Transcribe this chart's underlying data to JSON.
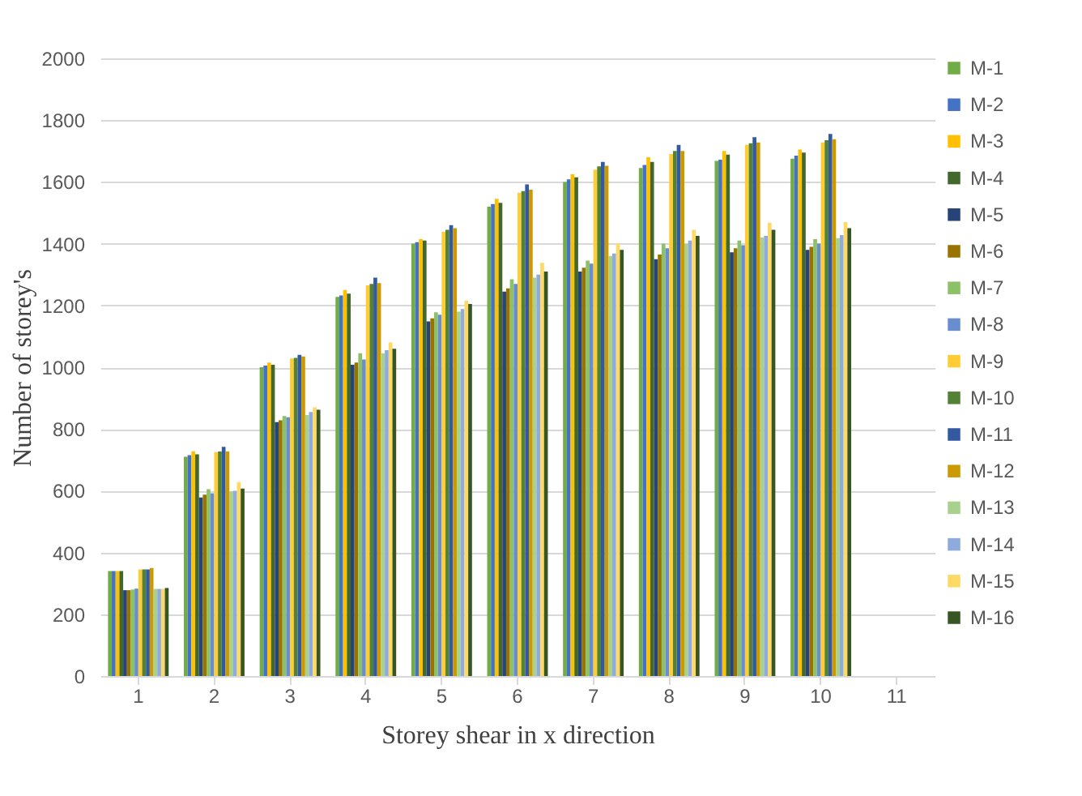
{
  "chart_data": {
    "type": "bar",
    "xlabel": "Storey shear in x direction",
    "ylabel": "Number of storey's",
    "categories": [
      "1",
      "2",
      "3",
      "4",
      "5",
      "6",
      "7",
      "8",
      "9",
      "10",
      "11"
    ],
    "ylim": [
      0,
      2000
    ],
    "yticks": [
      0,
      200,
      400,
      600,
      800,
      1000,
      1200,
      1400,
      1600,
      1800,
      2000
    ],
    "grid": "y",
    "legend": "right",
    "series": [
      {
        "name": "M-1",
        "color": "#70ad47",
        "values": [
          340,
          710,
          1000,
          1228,
          1400,
          1520,
          1600,
          1645,
          1668,
          1675,
          null
        ]
      },
      {
        "name": "M-2",
        "color": "#4472c4",
        "values": [
          340,
          715,
          1005,
          1232,
          1405,
          1528,
          1608,
          1655,
          1672,
          1685,
          null
        ]
      },
      {
        "name": "M-3",
        "color": "#ffc000",
        "values": [
          340,
          728,
          1015,
          1250,
          1415,
          1545,
          1625,
          1680,
          1700,
          1705,
          null
        ]
      },
      {
        "name": "M-4",
        "color": "#43682b",
        "values": [
          340,
          718,
          1008,
          1238,
          1410,
          1532,
          1615,
          1665,
          1688,
          1695,
          null
        ]
      },
      {
        "name": "M-5",
        "color": "#264478",
        "values": [
          278,
          578,
          822,
          1008,
          1148,
          1245,
          1310,
          1350,
          1372,
          1380,
          null
        ]
      },
      {
        "name": "M-6",
        "color": "#997300",
        "values": [
          278,
          587,
          828,
          1015,
          1158,
          1255,
          1322,
          1365,
          1385,
          1390,
          null
        ]
      },
      {
        "name": "M-7",
        "color": "#8cc168",
        "values": [
          280,
          605,
          842,
          1045,
          1178,
          1285,
          1345,
          1400,
          1410,
          1415,
          null
        ]
      },
      {
        "name": "M-8",
        "color": "#698ed0",
        "values": [
          283,
          592,
          838,
          1025,
          1170,
          1270,
          1335,
          1385,
          1395,
          1400,
          null
        ]
      },
      {
        "name": "M-9",
        "color": "#ffcd33",
        "values": [
          345,
          725,
          1028,
          1265,
          1438,
          1565,
          1640,
          1690,
          1720,
          1728,
          null
        ]
      },
      {
        "name": "M-10",
        "color": "#548235",
        "values": [
          345,
          727,
          1030,
          1270,
          1445,
          1570,
          1650,
          1700,
          1725,
          1735,
          null
        ]
      },
      {
        "name": "M-11",
        "color": "#335aa1",
        "values": [
          345,
          742,
          1040,
          1290,
          1460,
          1592,
          1665,
          1720,
          1745,
          1755,
          null
        ]
      },
      {
        "name": "M-12",
        "color": "#cc9a00",
        "values": [
          350,
          727,
          1035,
          1272,
          1450,
          1575,
          1652,
          1700,
          1728,
          1738,
          null
        ]
      },
      {
        "name": "M-13",
        "color": "#a9d18e",
        "values": [
          282,
          598,
          845,
          1045,
          1180,
          1290,
          1360,
          1400,
          1420,
          1418,
          null
        ]
      },
      {
        "name": "M-14",
        "color": "#8faadc",
        "values": [
          282,
          600,
          855,
          1055,
          1188,
          1300,
          1368,
          1410,
          1425,
          1428,
          null
        ]
      },
      {
        "name": "M-15",
        "color": "#ffd966",
        "values": [
          282,
          628,
          870,
          1080,
          1215,
          1338,
          1400,
          1445,
          1468,
          1470,
          null
        ]
      },
      {
        "name": "M-16",
        "color": "#375623",
        "values": [
          285,
          607,
          862,
          1060,
          1205,
          1310,
          1380,
          1425,
          1445,
          1450,
          null
        ]
      }
    ]
  }
}
